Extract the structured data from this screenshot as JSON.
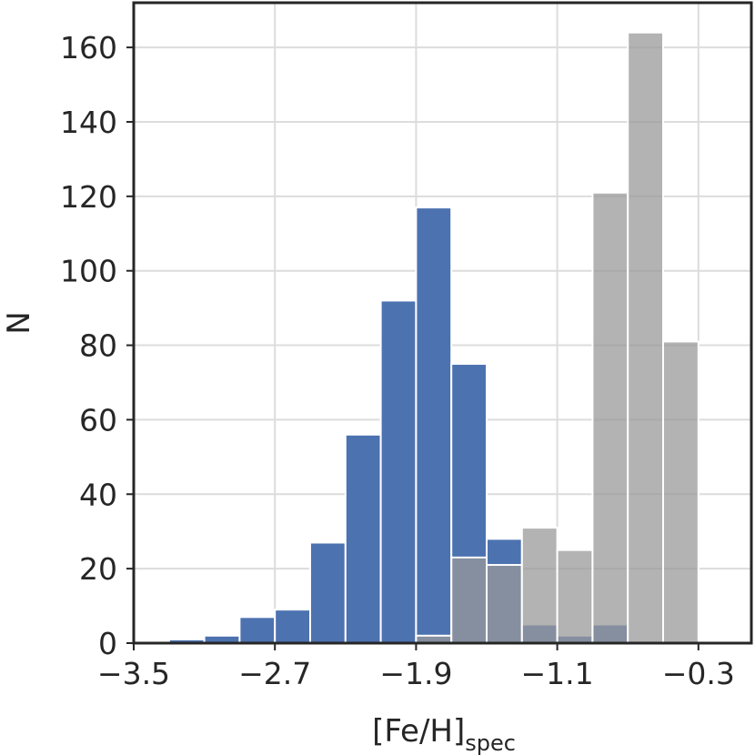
{
  "chart_data": {
    "type": "bar",
    "xlabel": "[Fe/H]",
    "xlabel_sub": "spec",
    "ylabel": "N",
    "xlim": [
      -3.5,
      0.0
    ],
    "ylim": [
      0,
      172
    ],
    "xticks": [
      -3.5,
      -2.7,
      -1.9,
      -1.1,
      -0.3
    ],
    "xtick_labels": [
      "−3.5",
      "−2.7",
      "−1.9",
      "−1.1",
      "−0.3"
    ],
    "yticks": [
      0,
      20,
      40,
      60,
      80,
      100,
      120,
      140,
      160
    ],
    "ytick_labels": [
      "0",
      "20",
      "40",
      "60",
      "80",
      "100",
      "120",
      "140",
      "160"
    ],
    "grid": true,
    "bin_edges": [
      -3.3,
      -3.1,
      -2.9,
      -2.7,
      -2.5,
      -2.3,
      -2.1,
      -1.9,
      -1.7,
      -1.5,
      -1.3,
      -1.1,
      -0.9,
      -0.7,
      -0.5,
      -0.3,
      -0.1
    ],
    "series": [
      {
        "color": "#4c72b0",
        "opacity": 1.0,
        "values": [
          1,
          2,
          7,
          9,
          27,
          56,
          92,
          117,
          75,
          28,
          5,
          2,
          5,
          0,
          0,
          0
        ]
      },
      {
        "color": "#999999",
        "opacity": 0.75,
        "values": [
          0,
          0,
          0,
          0,
          0,
          0,
          0,
          2,
          23,
          21,
          31,
          25,
          121,
          164,
          81,
          0
        ]
      }
    ]
  }
}
